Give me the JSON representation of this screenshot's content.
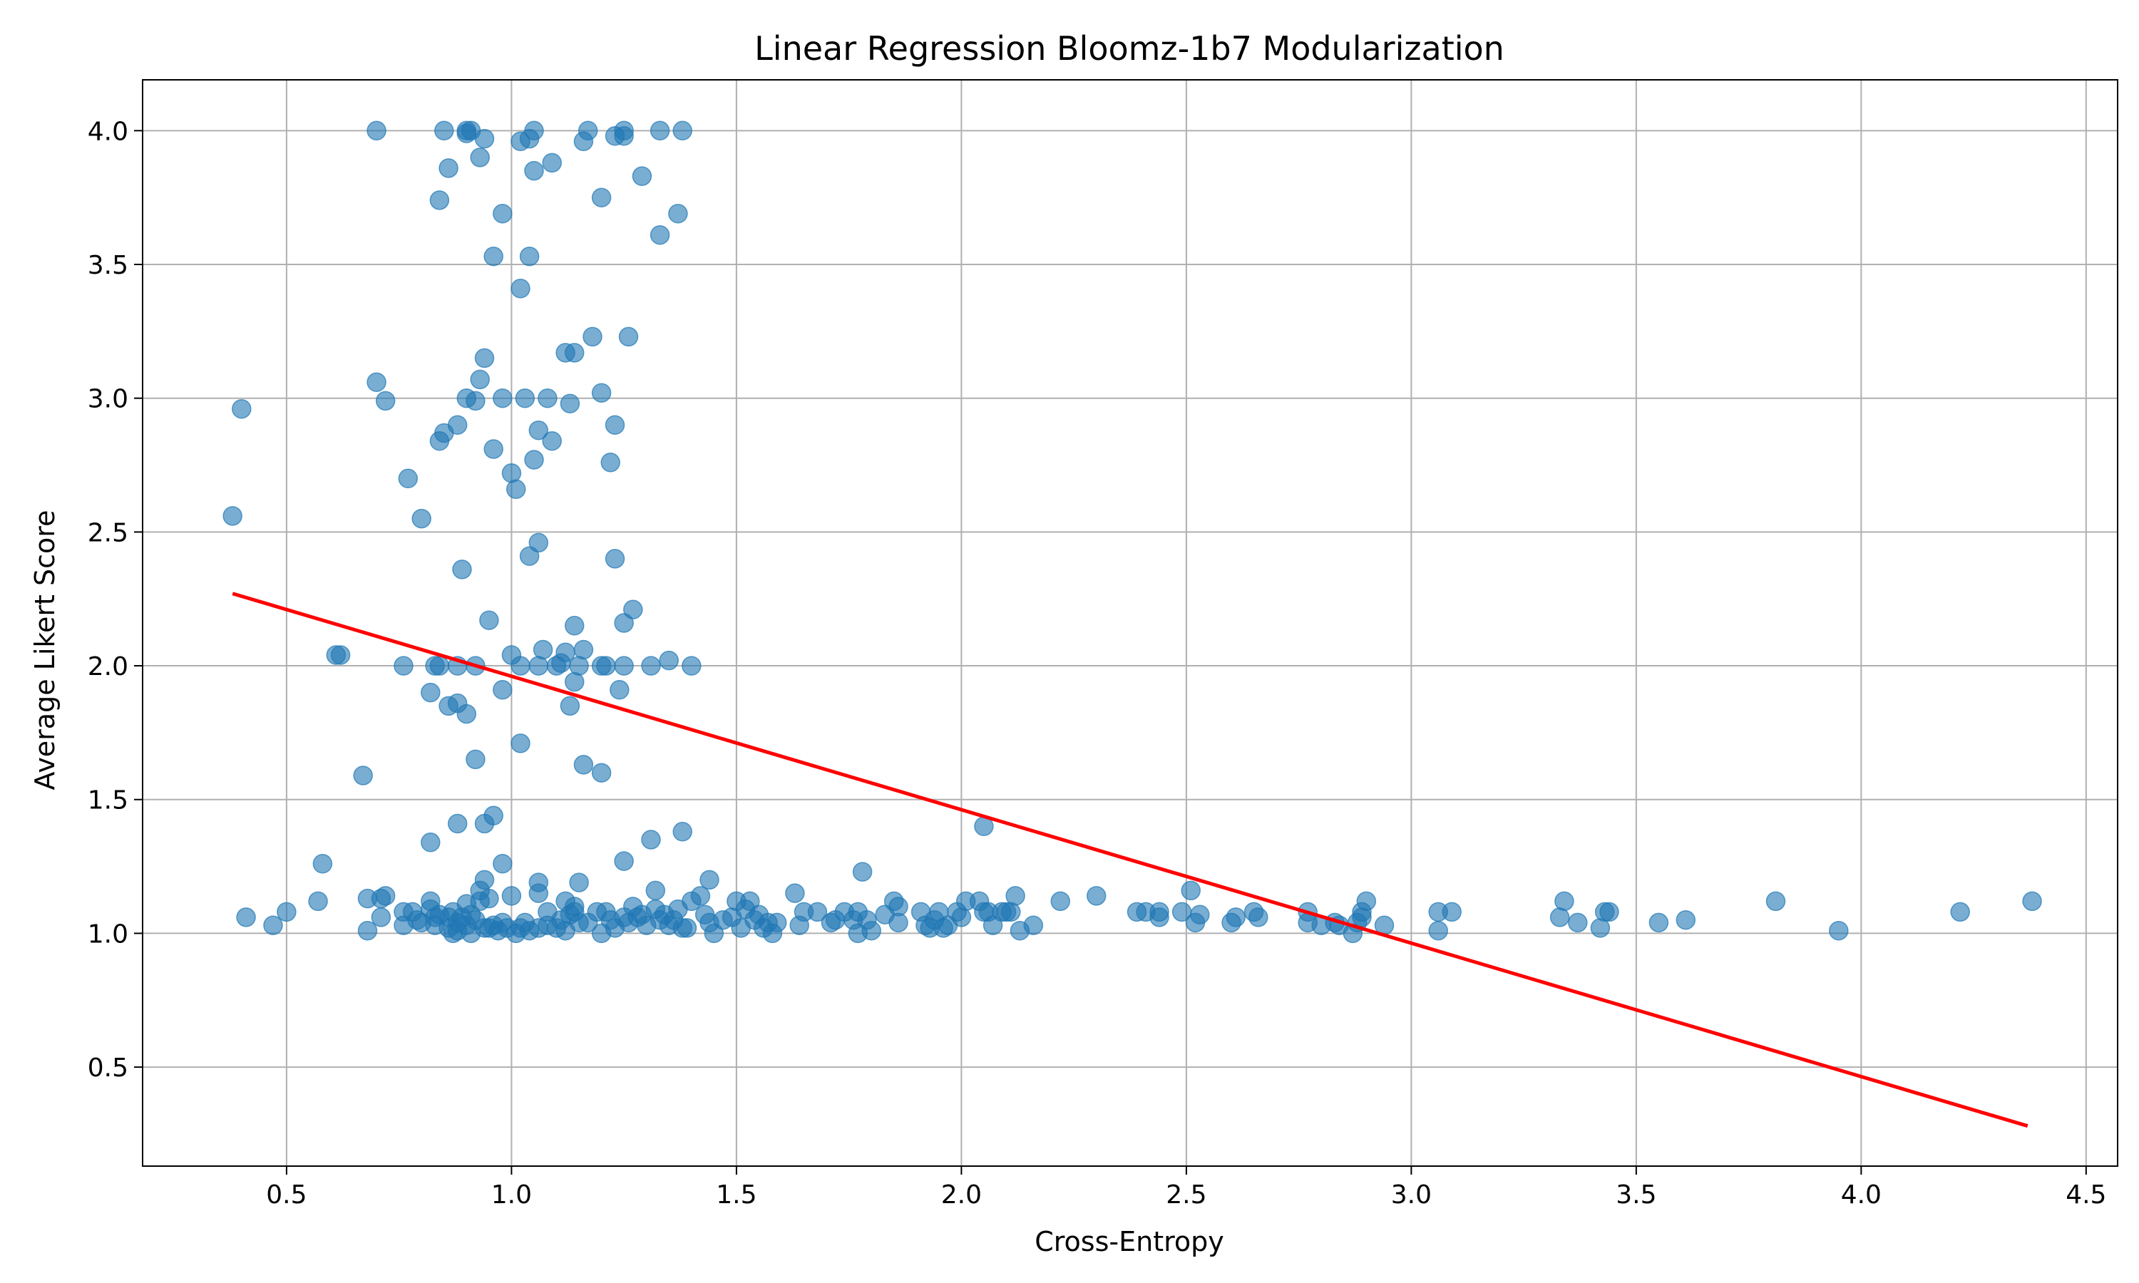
{
  "chart_data": {
    "type": "scatter",
    "title": "Linear Regression Bloomz-1b7 Modularization",
    "xlabel": "Cross-Entropy",
    "ylabel": "Average Likert Score",
    "xlim": [
      0.18,
      4.57
    ],
    "ylim": [
      0.13,
      4.19
    ],
    "x_ticks": [
      0.5,
      1.0,
      1.5,
      2.0,
      2.5,
      3.0,
      3.5,
      4.0,
      4.5
    ],
    "x_tick_labels": [
      "0.5",
      "1.0",
      "1.5",
      "2.0",
      "2.5",
      "3.0",
      "3.5",
      "4.0",
      "4.5"
    ],
    "y_ticks": [
      0.5,
      1.0,
      1.5,
      2.0,
      2.5,
      3.0,
      3.5,
      4.0
    ],
    "y_tick_labels": [
      "0.5",
      "1.0",
      "1.5",
      "2.0",
      "2.5",
      "3.0",
      "3.5",
      "4.0"
    ],
    "grid": true,
    "colors": {
      "points": "#1f77b4",
      "regression": "#ff0000",
      "grid": "#b0b0b0"
    },
    "regression_line": {
      "x": [
        0.38,
        4.37
      ],
      "y": [
        2.27,
        0.28
      ]
    },
    "points": [
      [
        0.7,
        4.0
      ],
      [
        0.85,
        4.0
      ],
      [
        0.9,
        4.0
      ],
      [
        0.91,
        4.0
      ],
      [
        0.9,
        3.99
      ],
      [
        0.94,
        3.97
      ],
      [
        1.02,
        3.96
      ],
      [
        1.04,
        3.97
      ],
      [
        1.05,
        4.0
      ],
      [
        1.16,
        3.96
      ],
      [
        1.17,
        4.0
      ],
      [
        1.23,
        3.98
      ],
      [
        1.25,
        4.0
      ],
      [
        1.25,
        3.98
      ],
      [
        1.33,
        4.0
      ],
      [
        1.38,
        4.0
      ],
      [
        0.93,
        3.9
      ],
      [
        0.86,
        3.86
      ],
      [
        1.05,
        3.85
      ],
      [
        1.09,
        3.88
      ],
      [
        1.29,
        3.83
      ],
      [
        0.84,
        3.74
      ],
      [
        1.2,
        3.75
      ],
      [
        0.98,
        3.69
      ],
      [
        1.37,
        3.69
      ],
      [
        1.33,
        3.61
      ],
      [
        0.96,
        3.53
      ],
      [
        1.04,
        3.53
      ],
      [
        1.02,
        3.41
      ],
      [
        1.18,
        3.23
      ],
      [
        1.26,
        3.23
      ],
      [
        0.94,
        3.15
      ],
      [
        1.12,
        3.17
      ],
      [
        1.14,
        3.17
      ],
      [
        0.93,
        3.07
      ],
      [
        0.7,
        3.06
      ],
      [
        0.72,
        2.99
      ],
      [
        0.9,
        3.0
      ],
      [
        0.92,
        2.99
      ],
      [
        0.98,
        3.0
      ],
      [
        1.03,
        3.0
      ],
      [
        1.08,
        3.0
      ],
      [
        1.13,
        2.98
      ],
      [
        1.2,
        3.02
      ],
      [
        1.23,
        2.9
      ],
      [
        0.88,
        2.9
      ],
      [
        0.85,
        2.87
      ],
      [
        0.84,
        2.84
      ],
      [
        0.96,
        2.81
      ],
      [
        1.06,
        2.88
      ],
      [
        1.09,
        2.84
      ],
      [
        1.05,
        2.77
      ],
      [
        1.22,
        2.76
      ],
      [
        1.0,
        2.72
      ],
      [
        1.01,
        2.66
      ],
      [
        0.77,
        2.7
      ],
      [
        0.8,
        2.55
      ],
      [
        1.06,
        2.46
      ],
      [
        1.04,
        2.41
      ],
      [
        1.23,
        2.4
      ],
      [
        0.89,
        2.36
      ],
      [
        0.4,
        2.96
      ],
      [
        0.38,
        2.56
      ],
      [
        1.27,
        2.21
      ],
      [
        0.95,
        2.17
      ],
      [
        1.14,
        2.15
      ],
      [
        1.25,
        2.16
      ],
      [
        0.62,
        2.04
      ],
      [
        0.61,
        2.04
      ],
      [
        0.76,
        2.0
      ],
      [
        0.83,
        2.0
      ],
      [
        0.84,
        2.0
      ],
      [
        0.88,
        2.0
      ],
      [
        0.92,
        2.0
      ],
      [
        1.0,
        2.04
      ],
      [
        1.02,
        2.0
      ],
      [
        1.06,
        2.0
      ],
      [
        1.07,
        2.06
      ],
      [
        1.1,
        2.0
      ],
      [
        1.11,
        2.01
      ],
      [
        1.12,
        2.05
      ],
      [
        1.15,
        2.0
      ],
      [
        1.16,
        2.06
      ],
      [
        1.2,
        2.0
      ],
      [
        1.21,
        2.0
      ],
      [
        1.25,
        2.0
      ],
      [
        1.31,
        2.0
      ],
      [
        1.35,
        2.02
      ],
      [
        1.4,
        2.0
      ],
      [
        0.82,
        1.9
      ],
      [
        0.98,
        1.91
      ],
      [
        1.24,
        1.91
      ],
      [
        1.14,
        1.94
      ],
      [
        0.86,
        1.85
      ],
      [
        0.88,
        1.86
      ],
      [
        1.13,
        1.85
      ],
      [
        0.9,
        1.82
      ],
      [
        1.02,
        1.71
      ],
      [
        0.92,
        1.65
      ],
      [
        1.16,
        1.63
      ],
      [
        1.2,
        1.6
      ],
      [
        0.67,
        1.59
      ],
      [
        0.96,
        1.44
      ],
      [
        0.94,
        1.41
      ],
      [
        0.88,
        1.41
      ],
      [
        2.05,
        1.4
      ],
      [
        1.38,
        1.38
      ],
      [
        1.31,
        1.35
      ],
      [
        0.82,
        1.34
      ],
      [
        0.98,
        1.26
      ],
      [
        1.25,
        1.27
      ],
      [
        0.58,
        1.26
      ],
      [
        1.78,
        1.23
      ],
      [
        0.94,
        1.2
      ],
      [
        1.06,
        1.19
      ],
      [
        1.15,
        1.19
      ],
      [
        1.44,
        1.2
      ],
      [
        0.93,
        1.16
      ],
      [
        1.06,
        1.15
      ],
      [
        1.32,
        1.16
      ],
      [
        1.63,
        1.15
      ],
      [
        2.3,
        1.14
      ],
      [
        2.12,
        1.14
      ],
      [
        2.51,
        1.16
      ],
      [
        0.41,
        1.06
      ],
      [
        0.47,
        1.03
      ],
      [
        0.5,
        1.08
      ],
      [
        0.57,
        1.12
      ],
      [
        0.68,
        1.13
      ],
      [
        0.71,
        1.13
      ],
      [
        0.72,
        1.14
      ],
      [
        0.71,
        1.06
      ],
      [
        0.68,
        1.01
      ],
      [
        0.76,
        1.03
      ],
      [
        0.76,
        1.08
      ],
      [
        0.78,
        1.08
      ],
      [
        0.79,
        1.05
      ],
      [
        0.8,
        1.04
      ],
      [
        0.82,
        1.12
      ],
      [
        0.82,
        1.09
      ],
      [
        0.83,
        1.06
      ],
      [
        0.83,
        1.03
      ],
      [
        0.84,
        1.07
      ],
      [
        0.86,
        1.02
      ],
      [
        0.86,
        1.06
      ],
      [
        0.87,
        1.0
      ],
      [
        0.87,
        1.08
      ],
      [
        0.88,
        1.04
      ],
      [
        0.88,
        1.01
      ],
      [
        0.89,
        1.06
      ],
      [
        0.9,
        1.11
      ],
      [
        0.9,
        1.03
      ],
      [
        0.91,
        1.0
      ],
      [
        0.91,
        1.07
      ],
      [
        0.92,
        1.05
      ],
      [
        0.93,
        1.12
      ],
      [
        0.94,
        1.02
      ],
      [
        0.95,
        1.13
      ],
      [
        0.95,
        1.02
      ],
      [
        0.96,
        1.03
      ],
      [
        0.97,
        1.01
      ],
      [
        0.98,
        1.04
      ],
      [
        0.99,
        1.02
      ],
      [
        1.0,
        1.14
      ],
      [
        1.01,
        1.0
      ],
      [
        1.02,
        1.02
      ],
      [
        1.03,
        1.04
      ],
      [
        1.04,
        1.01
      ],
      [
        1.06,
        1.02
      ],
      [
        1.08,
        1.08
      ],
      [
        1.08,
        1.03
      ],
      [
        1.1,
        1.02
      ],
      [
        1.11,
        1.05
      ],
      [
        1.12,
        1.01
      ],
      [
        1.12,
        1.12
      ],
      [
        1.13,
        1.07
      ],
      [
        1.14,
        1.1
      ],
      [
        1.15,
        1.04
      ],
      [
        1.14,
        1.08
      ],
      [
        1.17,
        1.04
      ],
      [
        1.19,
        1.08
      ],
      [
        1.2,
        1.0
      ],
      [
        1.21,
        1.08
      ],
      [
        1.22,
        1.05
      ],
      [
        1.23,
        1.02
      ],
      [
        1.25,
        1.06
      ],
      [
        1.26,
        1.04
      ],
      [
        1.27,
        1.1
      ],
      [
        1.28,
        1.06
      ],
      [
        1.29,
        1.07
      ],
      [
        1.3,
        1.03
      ],
      [
        1.32,
        1.09
      ],
      [
        1.33,
        1.05
      ],
      [
        1.34,
        1.07
      ],
      [
        1.35,
        1.03
      ],
      [
        1.36,
        1.05
      ],
      [
        1.37,
        1.09
      ],
      [
        1.38,
        1.02
      ],
      [
        1.39,
        1.02
      ],
      [
        1.4,
        1.12
      ],
      [
        1.42,
        1.14
      ],
      [
        1.43,
        1.07
      ],
      [
        1.44,
        1.04
      ],
      [
        1.45,
        1.0
      ],
      [
        1.47,
        1.05
      ],
      [
        1.49,
        1.06
      ],
      [
        1.5,
        1.12
      ],
      [
        1.51,
        1.02
      ],
      [
        1.52,
        1.09
      ],
      [
        1.53,
        1.12
      ],
      [
        1.54,
        1.05
      ],
      [
        1.55,
        1.07
      ],
      [
        1.56,
        1.02
      ],
      [
        1.57,
        1.04
      ],
      [
        1.58,
        1.0
      ],
      [
        1.59,
        1.04
      ],
      [
        1.64,
        1.03
      ],
      [
        1.65,
        1.08
      ],
      [
        1.68,
        1.08
      ],
      [
        1.71,
        1.04
      ],
      [
        1.72,
        1.05
      ],
      [
        1.74,
        1.08
      ],
      [
        1.76,
        1.05
      ],
      [
        1.77,
        1.08
      ],
      [
        1.77,
        1.0
      ],
      [
        1.79,
        1.05
      ],
      [
        1.8,
        1.01
      ],
      [
        1.83,
        1.07
      ],
      [
        1.85,
        1.12
      ],
      [
        1.86,
        1.04
      ],
      [
        1.86,
        1.1
      ],
      [
        1.91,
        1.08
      ],
      [
        1.92,
        1.03
      ],
      [
        1.93,
        1.02
      ],
      [
        1.94,
        1.05
      ],
      [
        1.95,
        1.08
      ],
      [
        1.96,
        1.02
      ],
      [
        1.97,
        1.03
      ],
      [
        1.99,
        1.08
      ],
      [
        2.0,
        1.06
      ],
      [
        2.01,
        1.12
      ],
      [
        2.04,
        1.12
      ],
      [
        2.05,
        1.08
      ],
      [
        2.06,
        1.08
      ],
      [
        2.07,
        1.03
      ],
      [
        2.09,
        1.08
      ],
      [
        2.1,
        1.08
      ],
      [
        2.11,
        1.08
      ],
      [
        2.13,
        1.01
      ],
      [
        2.16,
        1.03
      ],
      [
        2.22,
        1.12
      ],
      [
        2.39,
        1.08
      ],
      [
        2.41,
        1.08
      ],
      [
        2.44,
        1.06
      ],
      [
        2.44,
        1.08
      ],
      [
        2.49,
        1.08
      ],
      [
        2.52,
        1.04
      ],
      [
        2.53,
        1.07
      ],
      [
        2.6,
        1.04
      ],
      [
        2.61,
        1.06
      ],
      [
        2.65,
        1.08
      ],
      [
        2.66,
        1.06
      ],
      [
        2.77,
        1.08
      ],
      [
        2.77,
        1.04
      ],
      [
        2.8,
        1.03
      ],
      [
        2.83,
        1.04
      ],
      [
        2.84,
        1.03
      ],
      [
        2.87,
        1.0
      ],
      [
        2.88,
        1.04
      ],
      [
        2.89,
        1.08
      ],
      [
        2.89,
        1.06
      ],
      [
        2.9,
        1.12
      ],
      [
        2.94,
        1.03
      ],
      [
        3.06,
        1.08
      ],
      [
        3.06,
        1.01
      ],
      [
        3.09,
        1.08
      ],
      [
        3.33,
        1.06
      ],
      [
        3.34,
        1.12
      ],
      [
        3.37,
        1.04
      ],
      [
        3.42,
        1.02
      ],
      [
        3.43,
        1.08
      ],
      [
        3.44,
        1.08
      ],
      [
        3.55,
        1.04
      ],
      [
        3.61,
        1.05
      ],
      [
        3.81,
        1.12
      ],
      [
        3.95,
        1.01
      ],
      [
        4.22,
        1.08
      ],
      [
        4.38,
        1.12
      ]
    ]
  }
}
